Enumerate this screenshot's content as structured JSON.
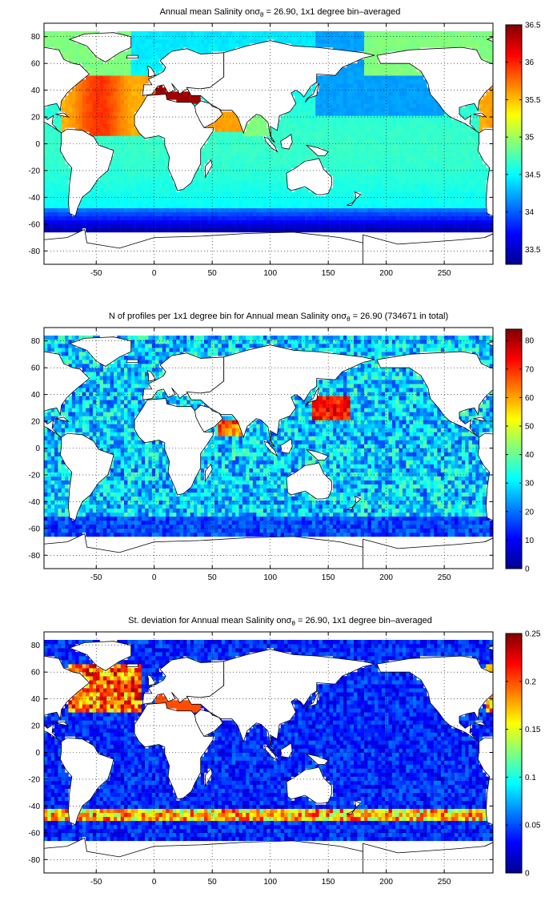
{
  "figure": {
    "panels": [
      {
        "id": "mean-salinity",
        "title": "Annual mean Salinity onσθ = 26.90, 1x1 degree bin–averaged",
        "title_parts": [
          "Annual mean Salinity on",
          "σ",
          "θ",
          " = 26.90, 1x1 degree bin–averaged"
        ],
        "colormap": "jet",
        "colorbar": {
          "min": 33.3,
          "max": 36.5,
          "ticks": [
            "33.5",
            "34",
            "34.5",
            "35",
            "35.5",
            "36",
            "36.5"
          ],
          "tick_values": [
            33.5,
            34,
            34.5,
            35,
            35.5,
            36,
            36.5
          ]
        },
        "field": "mean"
      },
      {
        "id": "profile-count",
        "title": "N of profiles per 1x1 degree bin for Annual mean Salinity onσθ = 26.90 (734671 in total)",
        "title_parts": [
          "N of profiles per 1x1 degree bin for Annual mean Salinity on",
          "σ",
          "θ",
          " = 26.90 (734671 in total)"
        ],
        "colormap": "jet",
        "colorbar": {
          "min": 0,
          "max": 84,
          "ticks": [
            "0",
            "10",
            "20",
            "30",
            "40",
            "50",
            "60",
            "70",
            "80"
          ],
          "tick_values": [
            0,
            10,
            20,
            30,
            40,
            50,
            60,
            70,
            80
          ]
        },
        "field": "count"
      },
      {
        "id": "std-salinity",
        "title": "St. deviation for Annual mean Salinity onσθ = 26.90, 1x1 degree bin–averaged",
        "title_parts": [
          "St. deviation for Annual mean Salinity on",
          "σ",
          "θ",
          " = 26.90, 1x1 degree bin–averaged"
        ],
        "colormap": "jet",
        "colorbar": {
          "min": 0,
          "max": 0.25,
          "ticks": [
            "0",
            "0.05",
            "0.1",
            "0.15",
            "0.2",
            "0.25"
          ],
          "tick_values": [
            0,
            0.05,
            0.1,
            0.15,
            0.2,
            0.25
          ]
        },
        "field": "std"
      }
    ],
    "axes": {
      "x_range": [
        -95,
        292
      ],
      "y_range": [
        -90,
        90
      ],
      "x_ticks": [
        "-50",
        "0",
        "50",
        "100",
        "150",
        "200",
        "250"
      ],
      "x_tick_values": [
        -50,
        0,
        50,
        100,
        150,
        200,
        250
      ],
      "y_ticks": [
        "80",
        "60",
        "40",
        "20",
        "0",
        "-20",
        "-40",
        "-60",
        "-80"
      ],
      "y_tick_values": [
        80,
        60,
        40,
        20,
        0,
        -20,
        -40,
        -60,
        -80
      ],
      "grid": "dotted"
    }
  }
}
